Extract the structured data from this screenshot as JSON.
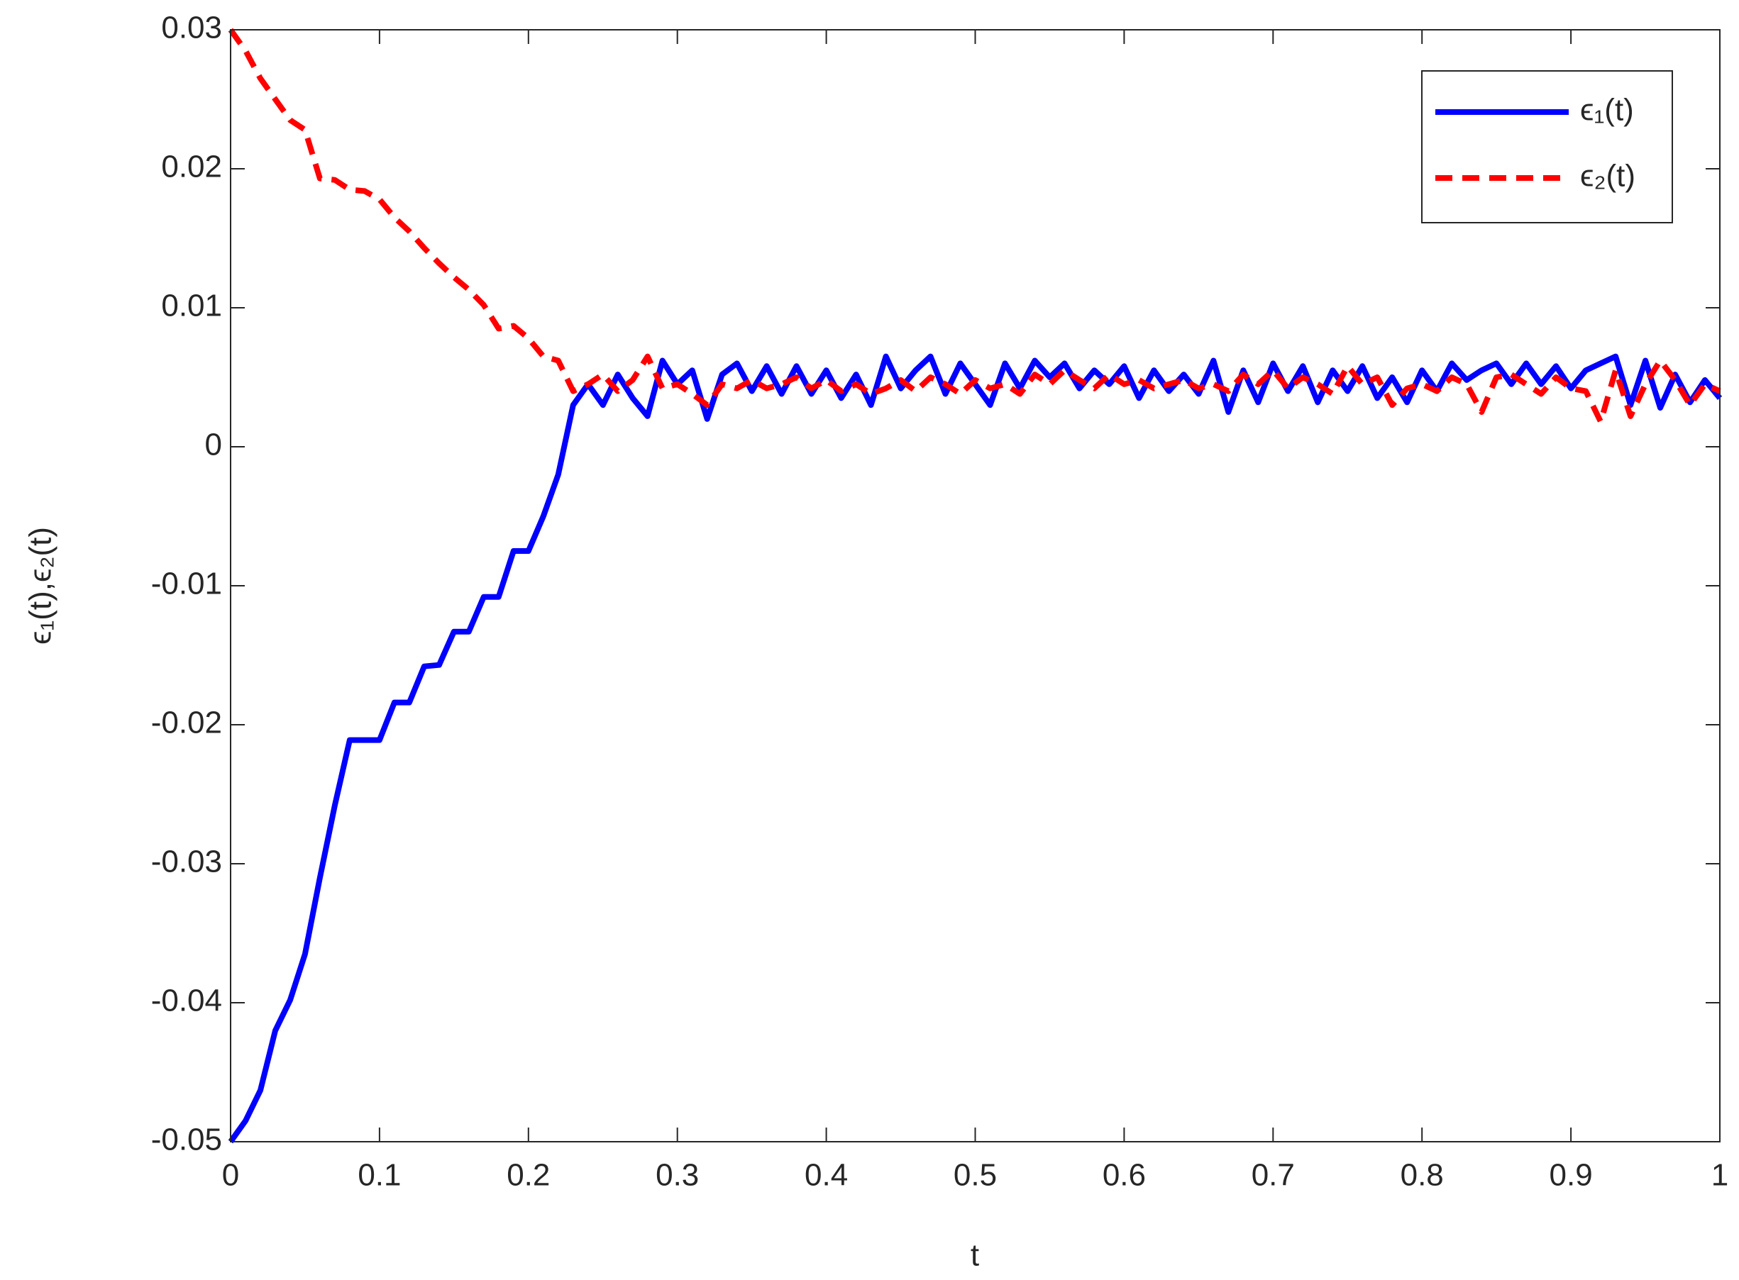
{
  "chart_data": {
    "type": "line",
    "xlabel": "t",
    "ylabel": "ϵ₁(t),ϵ₂(t)",
    "x": [
      0,
      0.01,
      0.02,
      0.03,
      0.04,
      0.05,
      0.06,
      0.07,
      0.08,
      0.09,
      0.1,
      0.11,
      0.12,
      0.13,
      0.14,
      0.15,
      0.16,
      0.17,
      0.18,
      0.19,
      0.2,
      0.21,
      0.22,
      0.23,
      0.24,
      0.25,
      0.26,
      0.27,
      0.28,
      0.29,
      0.3,
      0.31,
      0.32,
      0.33,
      0.34,
      0.35,
      0.36,
      0.37,
      0.38,
      0.39,
      0.4,
      0.41,
      0.42,
      0.43,
      0.44,
      0.45,
      0.46,
      0.47,
      0.48,
      0.49,
      0.5,
      0.51,
      0.52,
      0.53,
      0.54,
      0.55,
      0.56,
      0.57,
      0.58,
      0.59,
      0.6,
      0.61,
      0.62,
      0.63,
      0.64,
      0.65,
      0.66,
      0.67,
      0.68,
      0.69,
      0.7,
      0.71,
      0.72,
      0.73,
      0.74,
      0.75,
      0.76,
      0.77,
      0.78,
      0.79,
      0.8,
      0.81,
      0.82,
      0.83,
      0.84,
      0.85,
      0.86,
      0.87,
      0.88,
      0.89,
      0.9,
      0.91,
      0.92,
      0.93,
      0.94,
      0.95,
      0.96,
      0.97,
      0.98,
      0.99,
      1
    ],
    "series": [
      {
        "name": "ϵ₁(t)",
        "color": "#0000ff",
        "dash": false,
        "values": [
          -0.05,
          -0.0485,
          -0.0463,
          -0.042,
          -0.0398,
          -0.0365,
          -0.031,
          -0.0258,
          -0.0211,
          -0.0211,
          -0.0211,
          -0.0184,
          -0.0184,
          -0.0158,
          -0.0157,
          -0.0133,
          -0.0133,
          -0.0108,
          -0.0108,
          -0.0075,
          -0.0075,
          -0.005,
          -0.002,
          0.003,
          0.0045,
          0.003,
          0.0052,
          0.0035,
          0.0022,
          0.0062,
          0.0045,
          0.0055,
          0.002,
          0.0052,
          0.006,
          0.004,
          0.0058,
          0.0038,
          0.0058,
          0.0038,
          0.0055,
          0.0035,
          0.0052,
          0.003,
          0.0065,
          0.0042,
          0.0055,
          0.0065,
          0.0038,
          0.006,
          0.0045,
          0.003,
          0.006,
          0.0042,
          0.0062,
          0.005,
          0.006,
          0.0042,
          0.0055,
          0.0045,
          0.0058,
          0.0035,
          0.0055,
          0.004,
          0.0052,
          0.0038,
          0.0062,
          0.0025,
          0.0055,
          0.0032,
          0.006,
          0.004,
          0.0058,
          0.0032,
          0.0055,
          0.004,
          0.0058,
          0.0035,
          0.005,
          0.0032,
          0.0055,
          0.004,
          0.006,
          0.0048,
          0.0055,
          0.006,
          0.0045,
          0.006,
          0.0045,
          0.0058,
          0.0042,
          0.0055,
          0.006,
          0.0065,
          0.003,
          0.0062,
          0.0028,
          0.0052,
          0.0032,
          0.0048,
          0.0035
        ]
      },
      {
        "name": "ϵ₂(t)",
        "color": "#ff0000",
        "dash": true,
        "values": [
          0.03,
          0.0285,
          0.0265,
          0.025,
          0.0235,
          0.0228,
          0.0193,
          0.0192,
          0.0185,
          0.0184,
          0.0178,
          0.0165,
          0.0155,
          0.0143,
          0.0132,
          0.0122,
          0.0113,
          0.0102,
          0.0085,
          0.0087,
          0.0078,
          0.0065,
          0.0062,
          0.004,
          0.0045,
          0.0052,
          0.004,
          0.0048,
          0.0065,
          0.0042,
          0.0045,
          0.0038,
          0.003,
          0.0045,
          0.0042,
          0.0048,
          0.0042,
          0.0045,
          0.005,
          0.0042,
          0.0048,
          0.004,
          0.0045,
          0.0038,
          0.0042,
          0.0048,
          0.004,
          0.005,
          0.0045,
          0.0038,
          0.0048,
          0.0042,
          0.0045,
          0.0038,
          0.0052,
          0.0045,
          0.0055,
          0.0048,
          0.0042,
          0.0052,
          0.0045,
          0.0048,
          0.0042,
          0.0045,
          0.0048,
          0.0042,
          0.0045,
          0.004,
          0.0052,
          0.0045,
          0.0055,
          0.0042,
          0.005,
          0.0045,
          0.0038,
          0.0058,
          0.0045,
          0.005,
          0.003,
          0.0042,
          0.0045,
          0.004,
          0.005,
          0.0045,
          0.0025,
          0.005,
          0.0052,
          0.0045,
          0.0038,
          0.005,
          0.0042,
          0.004,
          0.0018,
          0.0055,
          0.0022,
          0.0045,
          0.0062,
          0.0048,
          0.003,
          0.0045,
          0.004
        ]
      }
    ],
    "xlim": [
      0,
      1
    ],
    "xticks": [
      0,
      0.1,
      0.2,
      0.3,
      0.4,
      0.5,
      0.6,
      0.7,
      0.8,
      0.9,
      1
    ],
    "ylim": [
      -0.05,
      0.03
    ],
    "yticks": [
      -0.05,
      -0.04,
      -0.03,
      -0.02,
      -0.01,
      0,
      0.01,
      0.02,
      0.03
    ],
    "grid": false,
    "legend": "upper right"
  }
}
